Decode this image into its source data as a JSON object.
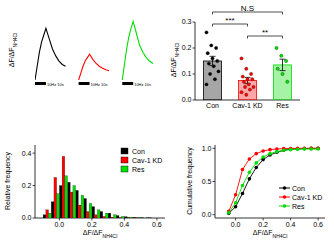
{
  "chart_data": [
    {
      "type": "line",
      "tick_labels": false,
      "xlim": [
        0,
        110
      ],
      "ylim": [
        0,
        0.18
      ],
      "ylabel": {
        "text": "ΔF/ΔF",
        "sub": "NH4Cl"
      },
      "series": [
        {
          "color": "#000000",
          "x": [
            0,
            2,
            4,
            6,
            8,
            10,
            13,
            16,
            19,
            22,
            25,
            28
          ],
          "values": [
            0,
            0.04,
            0.08,
            0.11,
            0.13,
            0.15,
            0.12,
            0.09,
            0.07,
            0.055,
            0.045,
            0.04
          ]
        },
        {
          "color": "#ff0000",
          "x": [
            40,
            42,
            44,
            46,
            48,
            50,
            53,
            56,
            59,
            62,
            65,
            68
          ],
          "values": [
            0,
            0.02,
            0.04,
            0.055,
            0.065,
            0.075,
            0.06,
            0.048,
            0.04,
            0.034,
            0.03,
            0.027
          ]
        },
        {
          "color": "#00dd00",
          "x": [
            80,
            82,
            84,
            86,
            88,
            90,
            93,
            96,
            99,
            102,
            105,
            108
          ],
          "values": [
            0,
            0.045,
            0.09,
            0.125,
            0.15,
            0.17,
            0.135,
            0.1,
            0.08,
            0.065,
            0.055,
            0.048
          ]
        }
      ],
      "stimuli": [
        {
          "start": 0,
          "end": 10,
          "label": "10Hz 10s"
        },
        {
          "start": 40,
          "end": 50,
          "label": "10Hz 10s"
        },
        {
          "start": 80,
          "end": 90,
          "label": "10Hz 10s"
        }
      ]
    },
    {
      "type": "bar",
      "categories": [
        "Con",
        "Cav-1 KD",
        "Res"
      ],
      "values": [
        0.15,
        0.075,
        0.135
      ],
      "errors": [
        0.018,
        0.012,
        0.022
      ],
      "colors": [
        "#000000",
        "#ff0000",
        "#00dd00"
      ],
      "points": [
        [
          0.26,
          0.21,
          0.2,
          0.18,
          0.16,
          0.15,
          0.14,
          0.13,
          0.11,
          0.1,
          0.08,
          0.06
        ],
        [
          0.16,
          0.12,
          0.1,
          0.09,
          0.08,
          0.08,
          0.07,
          0.06,
          0.05,
          0.05,
          0.04,
          0.03,
          0.02
        ],
        [
          0.2,
          0.17,
          0.15,
          0.12,
          0.1,
          0.07
        ]
      ],
      "ylim": [
        0,
        0.3
      ],
      "yticks": [
        {
          "value": 0,
          "label": "0.0"
        },
        0.1,
        0.2,
        0.3
      ],
      "ylabel": {
        "text": "ΔF/ΔF",
        "sub": "NH4Cl"
      },
      "annotations": [
        {
          "text": "N.S",
          "between": [
            "Con",
            "Res"
          ]
        },
        {
          "text": "***",
          "between": [
            "Con",
            "Cav-1 KD"
          ]
        },
        {
          "text": "**",
          "between": [
            "Cav-1 KD",
            "Res"
          ]
        }
      ]
    },
    {
      "type": "histogram",
      "bins": [
        -0.1,
        -0.05,
        0,
        0.05,
        0.1,
        0.15,
        0.2,
        0.25,
        0.3,
        0.35,
        0.4,
        0.45,
        0.5,
        0.55,
        0.6
      ],
      "series": [
        {
          "name": "Con",
          "color": "#000000",
          "values": [
            0.02,
            0.1,
            0.2,
            0.22,
            0.17,
            0.12,
            0.07,
            0.04,
            0.03,
            0.015,
            0.008,
            0.004,
            0.002,
            0.001
          ]
        },
        {
          "name": "Cav-1 KD",
          "color": "#ff0000",
          "values": [
            0.05,
            0.25,
            0.38,
            0.16,
            0.08,
            0.04,
            0.02,
            0.01,
            0.005,
            0.003,
            0.002,
            0.001,
            0,
            0
          ]
        },
        {
          "name": "Res",
          "color": "#00dd00",
          "values": [
            0.03,
            0.15,
            0.26,
            0.2,
            0.14,
            0.09,
            0.05,
            0.03,
            0.02,
            0.01,
            0.005,
            0.003,
            0.001,
            0
          ]
        }
      ],
      "xlim": [
        -0.15,
        0.65
      ],
      "ylim": [
        0,
        0.45
      ],
      "xticks": [
        {
          "value": 0,
          "label": "0.0"
        },
        0.2,
        0.4,
        0.6
      ],
      "yticks": [
        {
          "value": 0,
          "label": "0.0"
        },
        0.2,
        0.4
      ],
      "xlabel": {
        "text": "ΔF/ΔF",
        "sub": "NH4Cl"
      },
      "ylabel": "Relative frequency",
      "legend": "top-right"
    },
    {
      "type": "line",
      "x": [
        -0.05,
        0,
        0.05,
        0.1,
        0.15,
        0.2,
        0.25,
        0.3,
        0.35,
        0.4,
        0.45,
        0.5,
        0.55,
        0.6
      ],
      "series": [
        {
          "name": "Con",
          "color": "#000000",
          "marker": "circle",
          "values": [
            0.02,
            0.12,
            0.32,
            0.54,
            0.71,
            0.83,
            0.9,
            0.94,
            0.97,
            0.985,
            0.993,
            0.997,
            0.999,
            1.0
          ]
        },
        {
          "name": "Cav-1 KD",
          "color": "#ff0000",
          "marker": "circle",
          "values": [
            0.05,
            0.3,
            0.68,
            0.84,
            0.92,
            0.96,
            0.98,
            0.99,
            0.995,
            0.998,
            1.0,
            1.0,
            1.0,
            1.0
          ]
        },
        {
          "name": "Res",
          "color": "#00dd00",
          "marker": "circle",
          "values": [
            0.03,
            0.18,
            0.44,
            0.64,
            0.78,
            0.87,
            0.92,
            0.95,
            0.97,
            0.98,
            0.985,
            0.988,
            0.989,
            0.989
          ]
        }
      ],
      "xlim": [
        -0.15,
        0.65
      ],
      "ylim": [
        -0.05,
        1.05
      ],
      "xticks": [
        {
          "value": 0,
          "label": "0.0"
        },
        0.2,
        0.4,
        0.6
      ],
      "yticks": [
        {
          "value": 0,
          "label": "0.0"
        },
        0.5,
        {
          "value": 1,
          "label": "1.0"
        }
      ],
      "xlabel": {
        "text": "ΔF/ΔF",
        "sub": "NH4Cl"
      },
      "ylabel": "Cumulative frequency",
      "legend": "bottom-right"
    }
  ]
}
